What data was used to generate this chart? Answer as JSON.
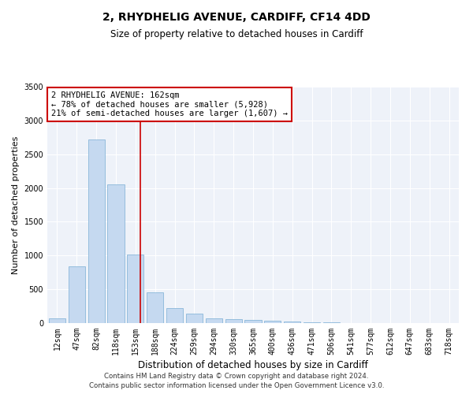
{
  "title": "2, RHYDHELIG AVENUE, CARDIFF, CF14 4DD",
  "subtitle": "Size of property relative to detached houses in Cardiff",
  "xlabel": "Distribution of detached houses by size in Cardiff",
  "ylabel": "Number of detached properties",
  "categories": [
    "12sqm",
    "47sqm",
    "82sqm",
    "118sqm",
    "153sqm",
    "188sqm",
    "224sqm",
    "259sqm",
    "294sqm",
    "330sqm",
    "365sqm",
    "400sqm",
    "436sqm",
    "471sqm",
    "506sqm",
    "541sqm",
    "577sqm",
    "612sqm",
    "647sqm",
    "683sqm",
    "718sqm"
  ],
  "values": [
    75,
    840,
    2720,
    2050,
    1010,
    450,
    220,
    140,
    75,
    60,
    50,
    30,
    20,
    12,
    8,
    5,
    3,
    2,
    1,
    1,
    1
  ],
  "bar_color": "#c5d9f0",
  "bar_edge_color": "#7aadd4",
  "vline_color": "#cc0000",
  "vline_x_index": 4.26,
  "annotation_text": "2 RHYDHELIG AVENUE: 162sqm\n← 78% of detached houses are smaller (5,928)\n21% of semi-detached houses are larger (1,607) →",
  "annotation_box_facecolor": "#ffffff",
  "annotation_box_edgecolor": "#cc0000",
  "ylim": [
    0,
    3500
  ],
  "yticks": [
    0,
    500,
    1000,
    1500,
    2000,
    2500,
    3000,
    3500
  ],
  "footer1": "Contains HM Land Registry data © Crown copyright and database right 2024.",
  "footer2": "Contains public sector information licensed under the Open Government Licence v3.0.",
  "plot_bg_color": "#eef2f9",
  "title_fontsize": 10,
  "subtitle_fontsize": 8.5,
  "tick_fontsize": 7,
  "ylabel_fontsize": 8,
  "xlabel_fontsize": 8.5
}
